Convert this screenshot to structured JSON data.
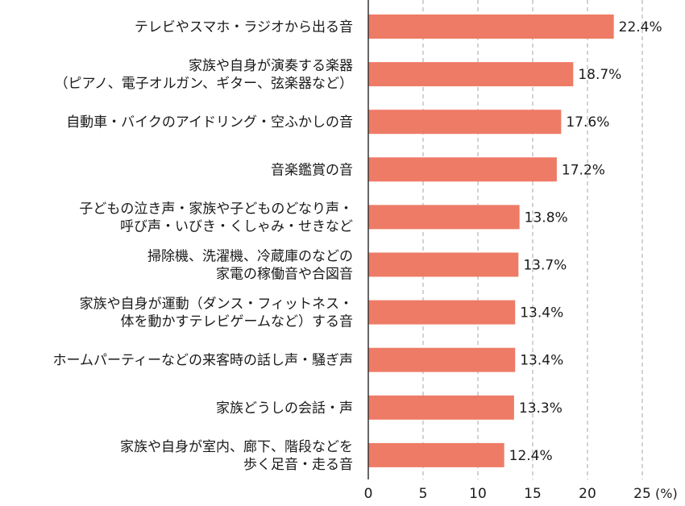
{
  "chart_data": {
    "type": "bar",
    "orientation": "horizontal",
    "categories": [
      [
        "テレビやスマホ・ラジオから出る音"
      ],
      [
        "家族や自身が演奏する楽器",
        "（ピアノ、電子オルガン、ギター、弦楽器など）"
      ],
      [
        "自動車・バイクのアイドリング・空ふかしの音"
      ],
      [
        "音楽鑑賞の音"
      ],
      [
        "子どもの泣き声・家族や子どものどなり声・",
        "呼び声・いびき・くしゃみ・せきなど"
      ],
      [
        "掃除機、洗濯機、冷蔵庫のなどの",
        "家電の稼働音や合図音"
      ],
      [
        "家族や自身が運動（ダンス・フィットネス・",
        "体を動かすテレビゲームなど）する音"
      ],
      [
        "ホームパーティーなどの来客時の話し声・騒ぎ声"
      ],
      [
        "家族どうしの会話・声"
      ],
      [
        "家族や自身が室内、廊下、階段などを",
        "歩く足音・走る音"
      ]
    ],
    "values": [
      22.4,
      18.7,
      17.6,
      17.2,
      13.8,
      13.7,
      13.4,
      13.4,
      13.3,
      12.4
    ],
    "value_labels": [
      "22.4%",
      "18.7%",
      "17.6%",
      "17.2%",
      "13.8%",
      "13.7%",
      "13.4%",
      "13.4%",
      "13.3%",
      "12.4%"
    ],
    "xlim": [
      0,
      25
    ],
    "xticks": [
      0,
      5,
      10,
      15,
      20,
      25
    ],
    "xtick_labels": [
      "0",
      "5",
      "10",
      "15",
      "20",
      "25"
    ],
    "x_unit": "(%)",
    "grid": "vertical dashed",
    "legend": "none",
    "colors": {
      "bar": "#ee7b66",
      "grid": "#b5b5b5",
      "axis": "#333333",
      "text": "#1a1a1a"
    }
  }
}
